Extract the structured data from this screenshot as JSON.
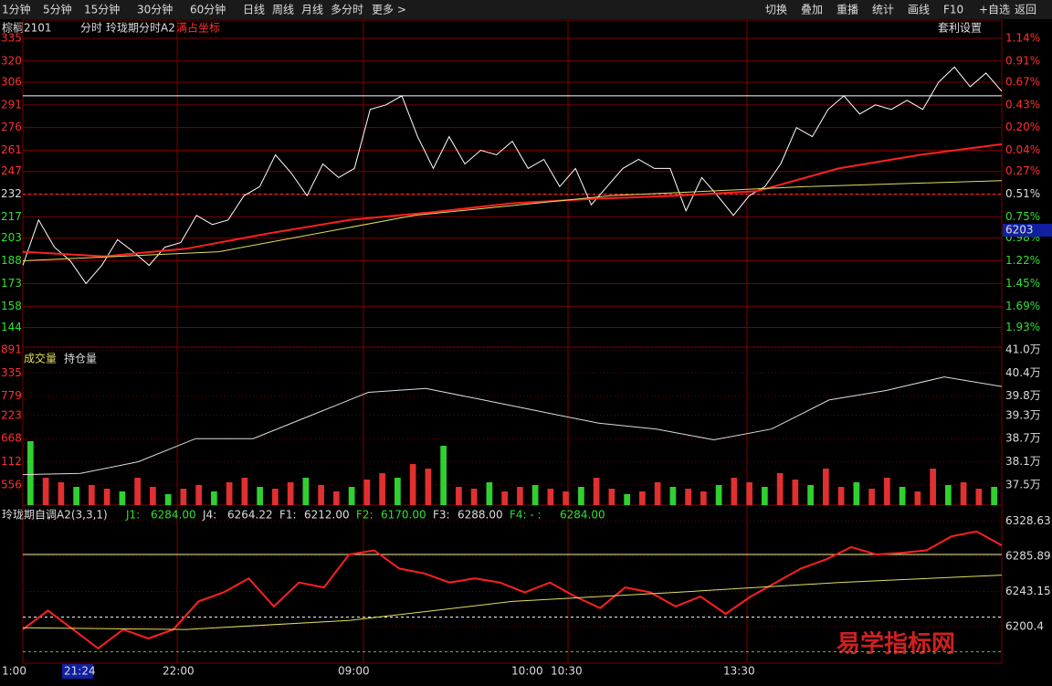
{
  "toolbar": {
    "left": [
      "1分钟",
      "5分钟",
      "15分钟",
      "30分钟",
      "60分钟",
      "日线",
      "周线",
      "月线",
      "多分时",
      "更多 >"
    ],
    "right": [
      "切换",
      "叠加",
      "重播",
      "统计",
      "画线",
      "F10",
      "+自选",
      "返回"
    ]
  },
  "header": {
    "symbol": "棕榈2101",
    "mode": "分时",
    "indicator": "玲珑期分时A2",
    "coord": "满占坐标",
    "setting": "套利设置"
  },
  "price_panel": {
    "type": "line",
    "ylim": [
      131,
      347
    ],
    "yticks": [
      335,
      320,
      306,
      291,
      276,
      261,
      247,
      232,
      217,
      203,
      188,
      173,
      158,
      144
    ],
    "right_labels": [
      "1.14%",
      "0.91%",
      "0.67%",
      "0.43%",
      "0.20%",
      "0.04%",
      "0.27%",
      "0.51%",
      "0.75%",
      "0.98%",
      "1.22%",
      "1.45%",
      "1.69%",
      "1.93%"
    ],
    "reference": 232,
    "high_line": 297,
    "price_tag": "6203",
    "series": [
      {
        "name": "price",
        "color": "#ffffff",
        "values": [
          185,
          215,
          197,
          188,
          173,
          185,
          202,
          194,
          185,
          197,
          200,
          218,
          212,
          215,
          231,
          237,
          258,
          246,
          231,
          252,
          243,
          249,
          288,
          291,
          297,
          270,
          249,
          270,
          252,
          261,
          258,
          267,
          249,
          255,
          237,
          249,
          225,
          237,
          249,
          255,
          249,
          249,
          221,
          243,
          231,
          218,
          231,
          237,
          252,
          276,
          270,
          288,
          297,
          285,
          291,
          288,
          294,
          288,
          306,
          316,
          303,
          312,
          300
        ]
      },
      {
        "name": "avg",
        "color": "#ff2020",
        "values": [
          194,
          191,
          196,
          206,
          215,
          220,
          226,
          229,
          231,
          234,
          249,
          258,
          265
        ]
      },
      {
        "name": "ma",
        "color": "#e0e060",
        "values": [
          188,
          194,
          218,
          231,
          237,
          241
        ]
      }
    ]
  },
  "volume_panel": {
    "title": "成交量",
    "title2": "持仓量",
    "left_labels": [
      "891",
      "335",
      "779",
      "223",
      "668",
      "112",
      "556"
    ],
    "vlim": [
      0,
      173
    ],
    "volumes": [
      70,
      30,
      25,
      20,
      22,
      18,
      15,
      30,
      20,
      12,
      18,
      22,
      15,
      25,
      30,
      20,
      18,
      25,
      30,
      22,
      15,
      20,
      28,
      35,
      30,
      45,
      40,
      65,
      20,
      18,
      25,
      15,
      20,
      22,
      18,
      15,
      20,
      30,
      18,
      12,
      15,
      25,
      20,
      18,
      15,
      22,
      30,
      25,
      20,
      35,
      28,
      22,
      40,
      20,
      25,
      18,
      30,
      20,
      15,
      40,
      22,
      25,
      18,
      20
    ],
    "y2lim": [
      36.98,
      41.07
    ],
    "y2ticks": [
      {
        "value": 41.0,
        "label": "41.0万"
      },
      {
        "value": 40.4,
        "label": "40.4万"
      },
      {
        "value": 39.8,
        "label": "39.8万"
      },
      {
        "value": 39.3,
        "label": "39.3万"
      },
      {
        "value": 38.7,
        "label": "38.7万"
      },
      {
        "value": 38.1,
        "label": "38.1万"
      },
      {
        "value": 37.5,
        "label": "37.5万"
      }
    ],
    "open_interest": [
      37.77,
      37.8,
      38.1,
      38.7,
      38.7,
      39.3,
      39.9,
      40.0,
      39.7,
      39.4,
      39.1,
      38.95,
      38.67,
      38.95,
      39.7,
      39.95,
      40.3,
      40.05
    ]
  },
  "indicator_panel": {
    "name": "玲珑期自调A2(3,3,1)",
    "items": [
      {
        "name": "J1:",
        "value": "6284.00"
      },
      {
        "name": "J4:",
        "value": "6264.22"
      },
      {
        "name": "F1:",
        "value": "6212.00"
      },
      {
        "name": "F2:",
        "value": "6170.00"
      },
      {
        "name": "F3:",
        "value": "6288.00"
      },
      {
        "name": "F4: - :",
        "value": "6284.00"
      }
    ],
    "ylim": [
      6156.1,
      6347.9
    ],
    "yticks": [
      6328.63,
      6285.89,
      6243.15,
      6200.4
    ],
    "levels": [
      6288,
      6212,
      6170
    ],
    "line": [
      6197,
      6220,
      6197,
      6174,
      6197,
      6186,
      6197,
      6231,
      6242,
      6259,
      6225,
      6254,
      6248,
      6288,
      6293,
      6271,
      6265,
      6254,
      6259,
      6254,
      6242,
      6254,
      6237,
      6223,
      6248,
      6242,
      6225,
      6237,
      6216,
      6237,
      6254,
      6271,
      6282,
      6297,
      6288,
      6290,
      6293,
      6310,
      6316,
      6299
    ],
    "ma": [
      6199,
      6197,
      6208,
      6231,
      6242,
      6254,
      6263
    ]
  },
  "time_labels": [
    "1:00",
    "21:24",
    "22:00",
    "09:00",
    "10:00",
    "10:30",
    "13:30"
  ],
  "watermark": "易学指标网"
}
